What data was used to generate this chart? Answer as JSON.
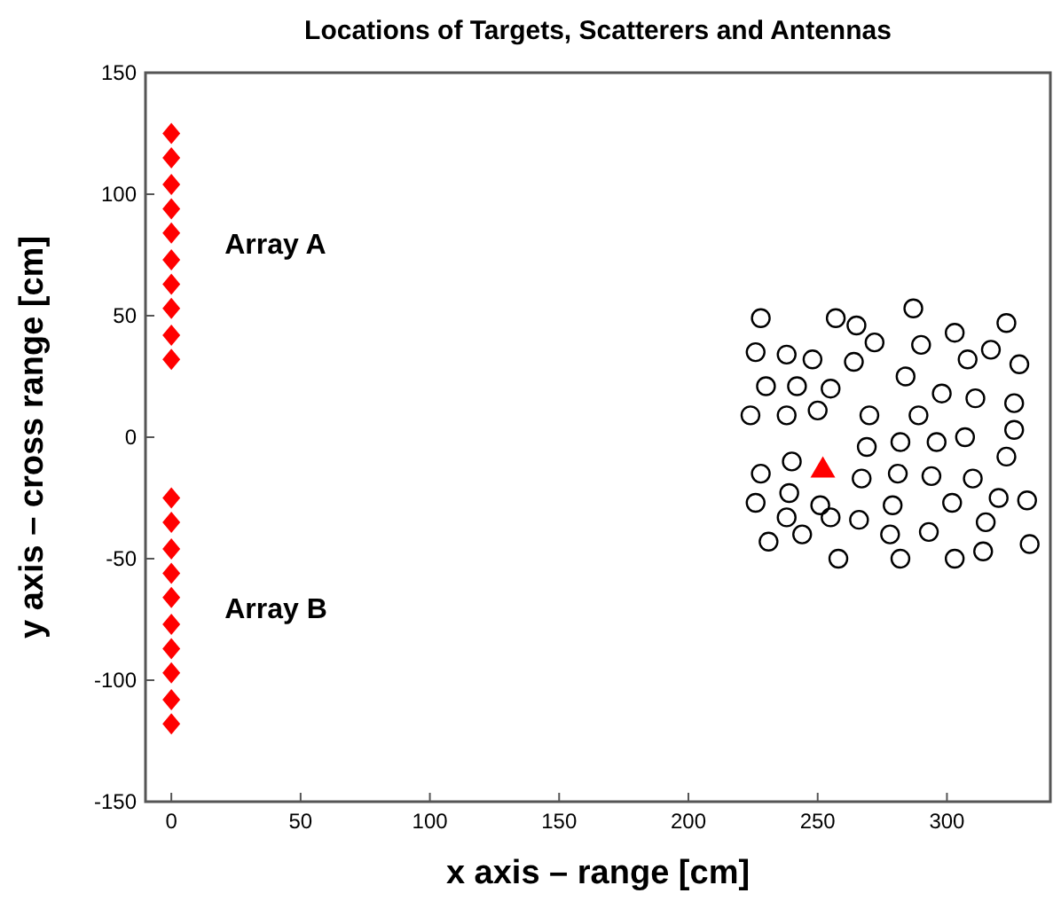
{
  "chart_data": {
    "type": "scatter",
    "title": "Locations of Targets, Scatterers and Antennas",
    "xlabel": "x axis – range [cm]",
    "ylabel": "y axis – cross range [cm]",
    "xlim": [
      -10,
      340
    ],
    "ylim": [
      -150,
      150
    ],
    "xticks": [
      0,
      50,
      100,
      150,
      200,
      250,
      300
    ],
    "yticks": [
      -150,
      -100,
      -50,
      0,
      50,
      100,
      150
    ],
    "grid": false,
    "annotations": [
      "Array A",
      "Array B"
    ],
    "series": [
      {
        "color": "#ff0000",
        "marker": "diamond",
        "x": [
          0,
          0,
          0,
          0,
          0,
          0,
          0,
          0,
          0,
          0
        ],
        "values": [
          125,
          115,
          104,
          94,
          84,
          73,
          63,
          53,
          42,
          32
        ]
      },
      {
        "color": "#ff0000",
        "marker": "diamond",
        "x": [
          0,
          0,
          0,
          0,
          0,
          0,
          0,
          0,
          0,
          0
        ],
        "values": [
          -25,
          -35,
          -46,
          -56,
          -66,
          -77,
          -87,
          -97,
          -108,
          -118
        ]
      },
      {
        "color": "#000000",
        "marker": "circle",
        "x": [
          228,
          257,
          265,
          287,
          323,
          303,
          272,
          226,
          238,
          248,
          264,
          290,
          317,
          308,
          328,
          284,
          230,
          242,
          255,
          298,
          311,
          326,
          224,
          238,
          250,
          270,
          289,
          326,
          269,
          282,
          296,
          307,
          323,
          228,
          240,
          267,
          281,
          294,
          310,
          226,
          239,
          251,
          279,
          302,
          320,
          331,
          238,
          255,
          266,
          315,
          231,
          244,
          278,
          293,
          332,
          258,
          282,
          303,
          314
        ],
        "values": [
          49,
          49,
          46,
          53,
          47,
          43,
          39,
          35,
          34,
          32,
          31,
          38,
          36,
          32,
          30,
          25,
          21,
          21,
          20,
          18,
          16,
          14,
          9,
          9,
          11,
          9,
          9,
          3,
          -4,
          -2,
          -2,
          0,
          -8,
          -15,
          -10,
          -17,
          -15,
          -16,
          -17,
          -27,
          -23,
          -28,
          -28,
          -27,
          -25,
          -26,
          -33,
          -33,
          -34,
          -35,
          -43,
          -40,
          -40,
          -39,
          -44,
          -50,
          -50,
          -50,
          -47
        ]
      },
      {
        "color": "#ff0000",
        "marker": "triangle",
        "x": [
          252
        ],
        "values": [
          -13
        ]
      }
    ]
  }
}
